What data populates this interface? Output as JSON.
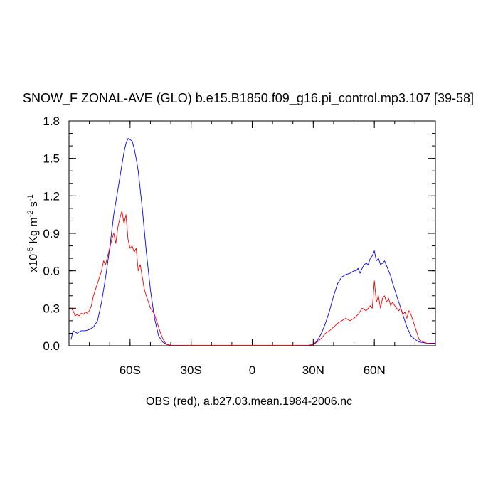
{
  "chart_data": {
    "type": "line",
    "title": "SNOW_F ZONAL-AVE (GLO) b.e15.B1850.f09_g16.pi_control.mp3.107 [39-58]",
    "xlabel": "OBS (red), a.b27.03.mean.1984-2006.nc",
    "ylabel": {
      "base": "x10",
      "exp": "-5",
      "unit1": " Kg m",
      "exp2": "-2",
      "unit2": " s",
      "exp3": "-1"
    },
    "xlim": [
      -90,
      90
    ],
    "ylim": [
      0,
      1.8
    ],
    "x_ticks": [
      {
        "value": -60,
        "label": "60S"
      },
      {
        "value": -30,
        "label": "30S"
      },
      {
        "value": 0,
        "label": "0"
      },
      {
        "value": 30,
        "label": "30N"
      },
      {
        "value": 60,
        "label": "60N"
      }
    ],
    "y_ticks": [
      {
        "value": 0,
        "label": "0.0"
      },
      {
        "value": 0.3,
        "label": "0.3"
      },
      {
        "value": 0.6,
        "label": "0.6"
      },
      {
        "value": 0.9,
        "label": "0.9"
      },
      {
        "value": 1.2,
        "label": "1.2"
      },
      {
        "value": 1.5,
        "label": "1.5"
      },
      {
        "value": 1.8,
        "label": "1.8"
      }
    ],
    "series": [
      {
        "color": "#0000ff",
        "x": [
          -89,
          -88,
          -86,
          -84,
          -82,
          -80,
          -78,
          -76,
          -74,
          -72,
          -70,
          -68,
          -66,
          -64,
          -63,
          -62,
          -61,
          -60,
          -59,
          -58,
          -57,
          -56,
          -54,
          -52,
          -50,
          -48,
          -46,
          -44,
          -42,
          -40,
          -30,
          -20,
          -10,
          0,
          10,
          20,
          28,
          30,
          32,
          34,
          36,
          38,
          40,
          42,
          44,
          46,
          48,
          50,
          51,
          52,
          53,
          54,
          55,
          56,
          57,
          58,
          59,
          60,
          61,
          62,
          63,
          64,
          65,
          66,
          67,
          68,
          69,
          70,
          72,
          74,
          76,
          78,
          80,
          82,
          84,
          86,
          88,
          90
        ],
        "y": [
          0.05,
          0.12,
          0.1,
          0.12,
          0.12,
          0.13,
          0.15,
          0.2,
          0.35,
          0.55,
          0.78,
          1.05,
          1.25,
          1.45,
          1.55,
          1.62,
          1.66,
          1.65,
          1.64,
          1.58,
          1.5,
          1.4,
          1.1,
          0.75,
          0.45,
          0.22,
          0.08,
          0.03,
          0.01,
          0.004,
          0.003,
          0.003,
          0.003,
          0.003,
          0.003,
          0.003,
          0.004,
          0.01,
          0.04,
          0.1,
          0.18,
          0.28,
          0.4,
          0.5,
          0.55,
          0.57,
          0.58,
          0.6,
          0.6,
          0.62,
          0.58,
          0.62,
          0.65,
          0.66,
          0.65,
          0.7,
          0.72,
          0.76,
          0.68,
          0.7,
          0.65,
          0.66,
          0.68,
          0.64,
          0.6,
          0.56,
          0.5,
          0.45,
          0.35,
          0.25,
          0.15,
          0.08,
          0.05,
          0.03,
          0.025,
          0.02,
          0.02,
          0.02
        ]
      },
      {
        "color": "#ff0000",
        "x": [
          -89,
          -88,
          -87,
          -86,
          -85,
          -84,
          -83,
          -82,
          -81,
          -80,
          -79,
          -78,
          -77,
          -76,
          -75,
          -74,
          -73,
          -72,
          -71,
          -70,
          -69,
          -68,
          -67,
          -66,
          -65,
          -64,
          -63,
          -62,
          -61,
          -60,
          -59,
          -58,
          -57,
          -56,
          -55,
          -54,
          -53,
          -52,
          -51,
          -50,
          -49,
          -48,
          -47,
          -46,
          -45,
          -44,
          -43,
          -42,
          -40,
          -30,
          -20,
          -10,
          0,
          10,
          20,
          28,
          30,
          32,
          34,
          36,
          38,
          40,
          42,
          44,
          46,
          48,
          50,
          52,
          54,
          56,
          57,
          58,
          59,
          60,
          61,
          62,
          63,
          64,
          65,
          66,
          67,
          68,
          69,
          70,
          71,
          72,
          73,
          74,
          75,
          76,
          77,
          78,
          80,
          82,
          84,
          86,
          88,
          90
        ],
        "y": [
          0.3,
          0.28,
          0.24,
          0.25,
          0.24,
          0.26,
          0.25,
          0.27,
          0.26,
          0.28,
          0.32,
          0.4,
          0.45,
          0.5,
          0.55,
          0.6,
          0.68,
          0.65,
          0.72,
          0.78,
          0.85,
          0.9,
          0.82,
          0.95,
          1.02,
          1.08,
          0.98,
          1.05,
          0.85,
          0.78,
          0.8,
          0.75,
          0.78,
          0.6,
          0.65,
          0.55,
          0.45,
          0.4,
          0.35,
          0.3,
          0.28,
          0.25,
          0.2,
          0.15,
          0.1,
          0.06,
          0.03,
          0.01,
          0.004,
          0.003,
          0.003,
          0.003,
          0.003,
          0.003,
          0.003,
          0.004,
          0.01,
          0.03,
          0.06,
          0.1,
          0.12,
          0.15,
          0.18,
          0.2,
          0.22,
          0.2,
          0.22,
          0.25,
          0.3,
          0.28,
          0.3,
          0.32,
          0.3,
          0.52,
          0.35,
          0.4,
          0.3,
          0.38,
          0.4,
          0.35,
          0.38,
          0.32,
          0.35,
          0.32,
          0.3,
          0.28,
          0.3,
          0.25,
          0.27,
          0.22,
          0.28,
          0.25,
          0.15,
          0.05,
          0.03,
          0.02,
          0.015,
          0.015
        ]
      }
    ]
  }
}
